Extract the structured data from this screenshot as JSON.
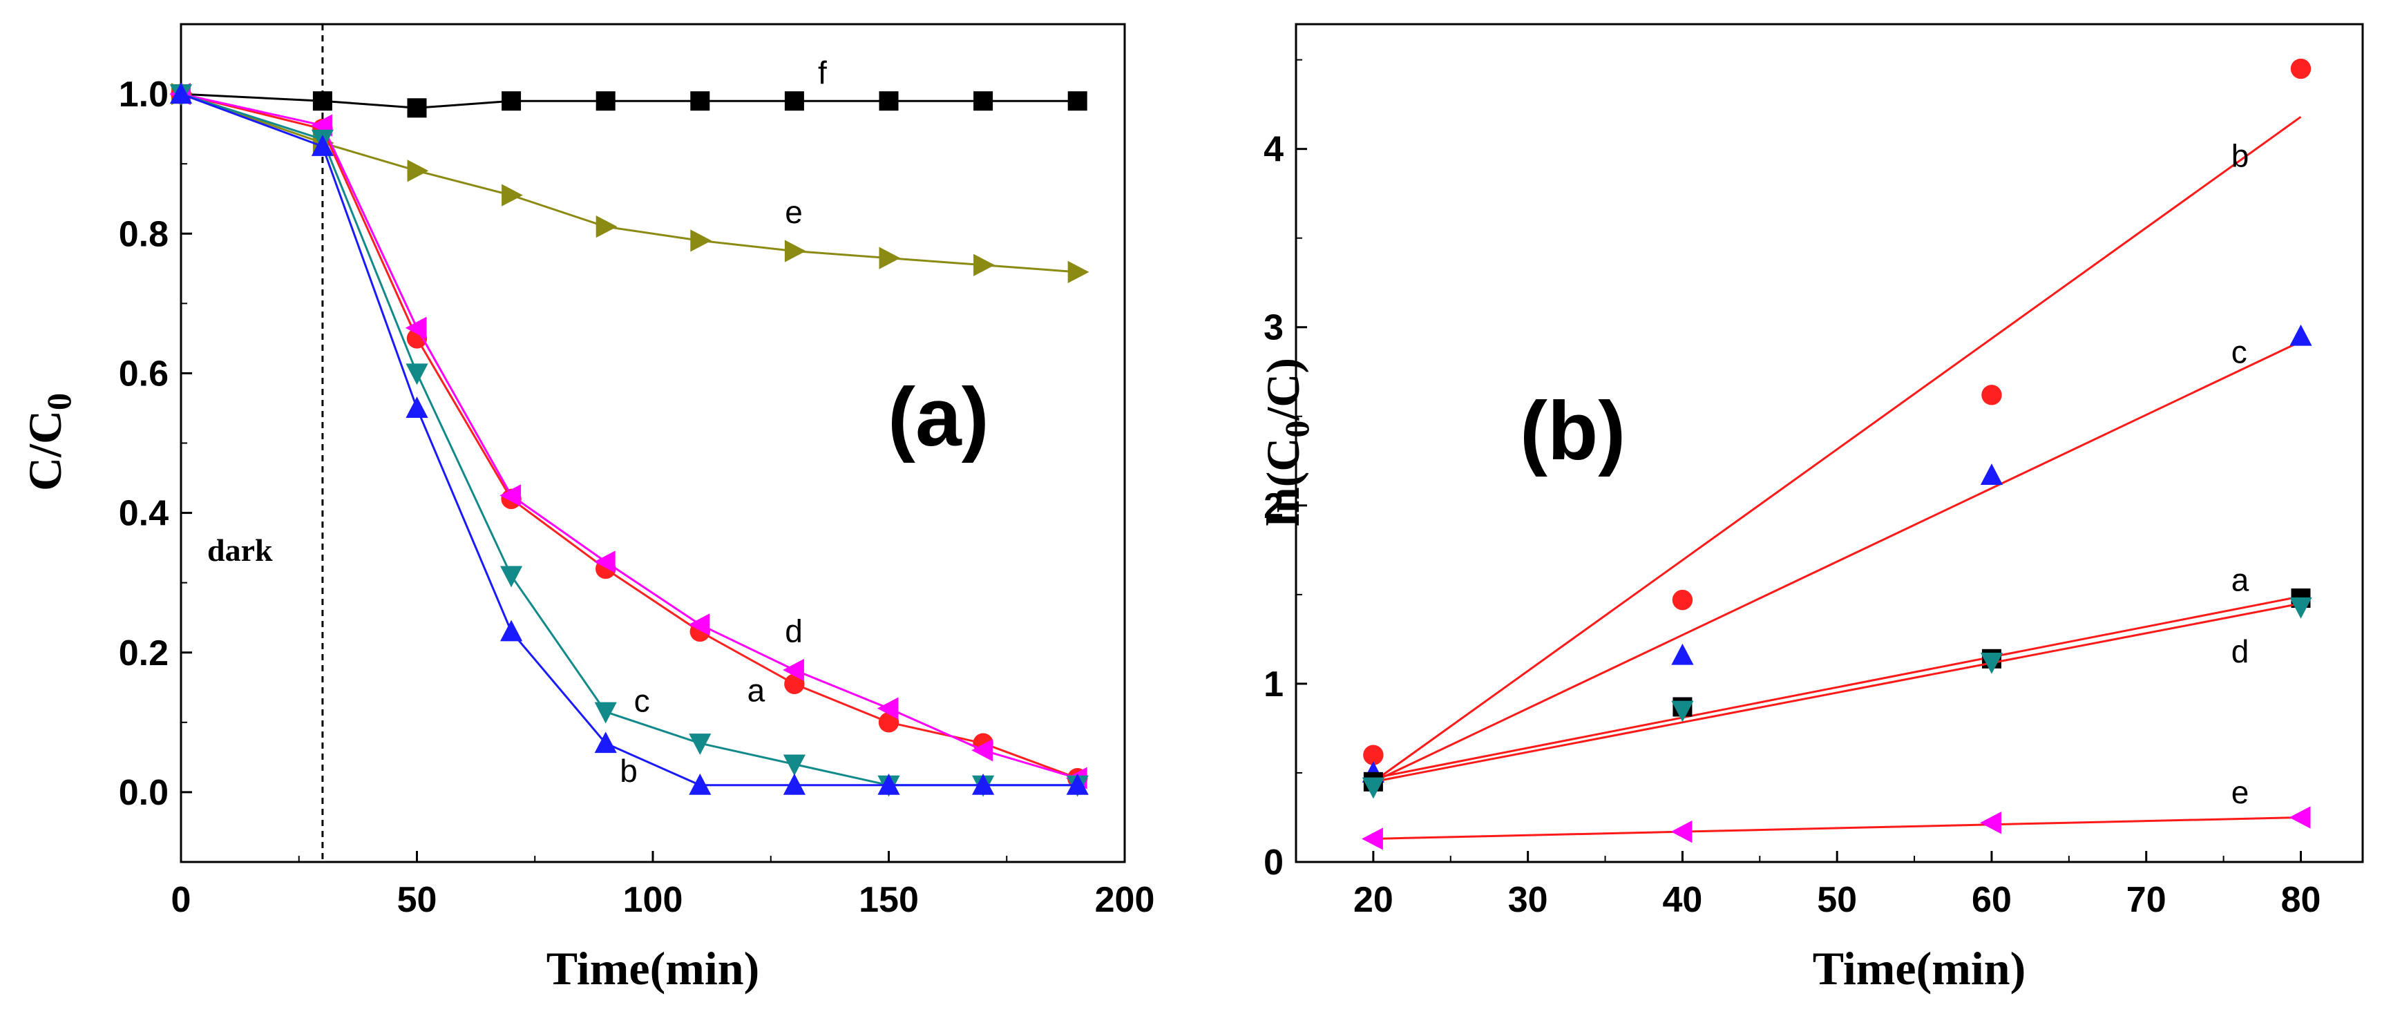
{
  "chart_data": [
    {
      "type": "line",
      "panel_label": "(a)",
      "xlabel": "Time(min)",
      "ylabel_main": "C/C",
      "ylabel_sub": "0",
      "xlim": [
        0,
        200
      ],
      "ylim": [
        -0.1,
        1.1
      ],
      "xticks": [
        0,
        50,
        100,
        150,
        200
      ],
      "yticks": [
        0.0,
        0.2,
        0.4,
        0.6,
        0.8,
        1.0
      ],
      "xtick_labels": [
        "0",
        "50",
        "100",
        "150",
        "200"
      ],
      "ytick_labels": [
        "0.0",
        "0.2",
        "0.4",
        "0.6",
        "0.8",
        "1.0"
      ],
      "annotation": {
        "text": "dark",
        "x": 30
      },
      "series": [
        {
          "name": "f",
          "color": "#000000",
          "marker": "square",
          "x": [
            0,
            30,
            50,
            70,
            90,
            110,
            130,
            150,
            170,
            190
          ],
          "y": [
            1.0,
            0.99,
            0.98,
            0.99,
            0.99,
            0.99,
            0.99,
            0.99,
            0.99,
            0.99
          ],
          "label_at": [
            135,
            1.015
          ]
        },
        {
          "name": "e",
          "color": "#8b8b14",
          "marker": "triangle-right",
          "x": [
            0,
            30,
            50,
            70,
            90,
            110,
            130,
            150,
            170,
            190
          ],
          "y": [
            1.0,
            0.93,
            0.89,
            0.855,
            0.81,
            0.79,
            0.775,
            0.765,
            0.755,
            0.745
          ],
          "label_at": [
            128,
            0.815
          ]
        },
        {
          "name": "a",
          "color": "#ff2020",
          "marker": "circle",
          "x": [
            0,
            30,
            50,
            70,
            90,
            110,
            130,
            150,
            170,
            190
          ],
          "y": [
            1.0,
            0.95,
            0.65,
            0.42,
            0.32,
            0.23,
            0.155,
            0.1,
            0.07,
            0.02
          ],
          "label_at": [
            120,
            0.13
          ]
        },
        {
          "name": "d",
          "color": "#ff00ff",
          "marker": "triangle-left",
          "x": [
            0,
            30,
            50,
            70,
            90,
            110,
            130,
            150,
            170,
            190
          ],
          "y": [
            1.0,
            0.955,
            0.665,
            0.425,
            0.33,
            0.24,
            0.175,
            0.12,
            0.06,
            0.02
          ],
          "label_at": [
            128,
            0.215
          ]
        },
        {
          "name": "c",
          "color": "#138a8a",
          "marker": "triangle-down",
          "x": [
            0,
            30,
            50,
            70,
            90,
            110,
            130,
            150,
            170,
            190
          ],
          "y": [
            1.0,
            0.935,
            0.6,
            0.31,
            0.115,
            0.07,
            0.04,
            0.01,
            0.01,
            0.01
          ],
          "label_at": [
            96,
            0.115
          ]
        },
        {
          "name": "b",
          "color": "#1a1aff",
          "marker": "triangle-up",
          "x": [
            0,
            30,
            50,
            70,
            90,
            110,
            130,
            150,
            170,
            190
          ],
          "y": [
            1.0,
            0.925,
            0.55,
            0.23,
            0.07,
            0.01,
            0.01,
            0.01,
            0.01,
            0.01
          ],
          "label_at": [
            93,
            0.015
          ]
        }
      ]
    },
    {
      "type": "scatter",
      "panel_label": "(b)",
      "xlabel": "Time(min)",
      "ylabel_main": "ln(C",
      "ylabel_sub": "0",
      "ylabel_tail": "/C)",
      "xlim": [
        15,
        84
      ],
      "ylim": [
        0,
        4.7
      ],
      "xticks": [
        20,
        30,
        40,
        50,
        60,
        70,
        80
      ],
      "yticks": [
        0,
        1,
        2,
        3,
        4
      ],
      "xtick_labels": [
        "20",
        "30",
        "40",
        "50",
        "60",
        "70",
        "80"
      ],
      "ytick_labels": [
        "0",
        "1",
        "2",
        "3",
        "4"
      ],
      "fit_color": "#ff1a1a",
      "series": [
        {
          "name": "b",
          "color": "#ff2020",
          "marker": "circle",
          "x": [
            20,
            40,
            60,
            80
          ],
          "y": [
            0.6,
            1.47,
            2.62,
            4.45
          ],
          "fit": [
            [
              20,
              0.45
            ],
            [
              80,
              4.18
            ]
          ],
          "label_at": [
            75.5,
            3.9
          ]
        },
        {
          "name": "c",
          "color": "#1a1aff",
          "marker": "triangle-up",
          "x": [
            20,
            40,
            60,
            80
          ],
          "y": [
            0.5,
            1.16,
            2.17,
            2.95
          ],
          "fit": [
            [
              20,
              0.45
            ],
            [
              80,
              2.92
            ]
          ],
          "label_at": [
            75.5,
            2.8
          ]
        },
        {
          "name": "a",
          "color": "#000000",
          "marker": "square",
          "x": [
            20,
            40,
            60,
            80
          ],
          "y": [
            0.45,
            0.87,
            1.14,
            1.48
          ],
          "fit": [
            [
              20,
              0.47
            ],
            [
              80,
              1.49
            ]
          ],
          "label_at": [
            75.5,
            1.52
          ]
        },
        {
          "name": "d",
          "color": "#138a8a",
          "marker": "triangle-down",
          "x": [
            20,
            40,
            60,
            80
          ],
          "y": [
            0.42,
            0.85,
            1.12,
            1.43
          ],
          "fit": [
            [
              20,
              0.45
            ],
            [
              80,
              1.45
            ]
          ],
          "label_at": [
            75.5,
            1.12
          ]
        },
        {
          "name": "e",
          "color": "#ff00ff",
          "marker": "triangle-left",
          "x": [
            20,
            40,
            60,
            80
          ],
          "y": [
            0.13,
            0.17,
            0.22,
            0.25
          ],
          "fit": [
            [
              20,
              0.13
            ],
            [
              80,
              0.25
            ]
          ],
          "label_at": [
            75.5,
            0.33
          ]
        }
      ]
    }
  ]
}
